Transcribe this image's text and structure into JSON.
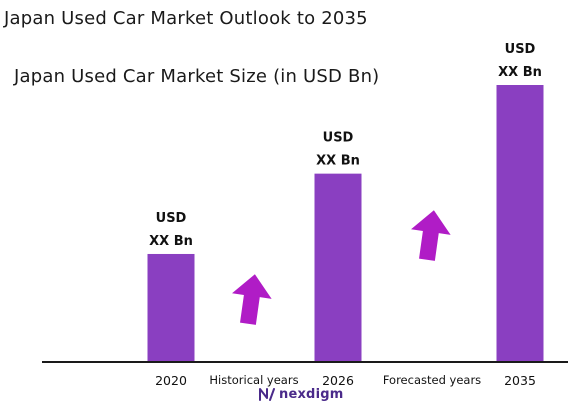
{
  "title": "Japan Used Car Market Outlook to 2035",
  "subtitle": "Japan Used Car Market Size (in USD Bn)",
  "logo_text": "nexdigm",
  "periods": [
    "Historical years",
    "Forecasted years"
  ],
  "colors": {
    "bar": "#8a3fc1",
    "arrow": "#b01cc6",
    "axis": "#1a1a1a",
    "logo": "#4a2a8a"
  },
  "chart_data": {
    "type": "bar",
    "categories": [
      "2020",
      "2026",
      "2035"
    ],
    "values": [
      0.39,
      0.68,
      1.0
    ],
    "value_labels": [
      [
        "USD",
        "XX Bn"
      ],
      [
        "USD",
        "XX Bn"
      ],
      [
        "USD",
        "XX Bn"
      ]
    ],
    "title": "Japan Used Car Market Size (in USD Bn)",
    "xlabel": "",
    "ylabel": "",
    "ylim": [
      0,
      1.0
    ],
    "grid": false,
    "legend": "none",
    "annotations": [
      "Historical years",
      "Forecasted years"
    ]
  }
}
